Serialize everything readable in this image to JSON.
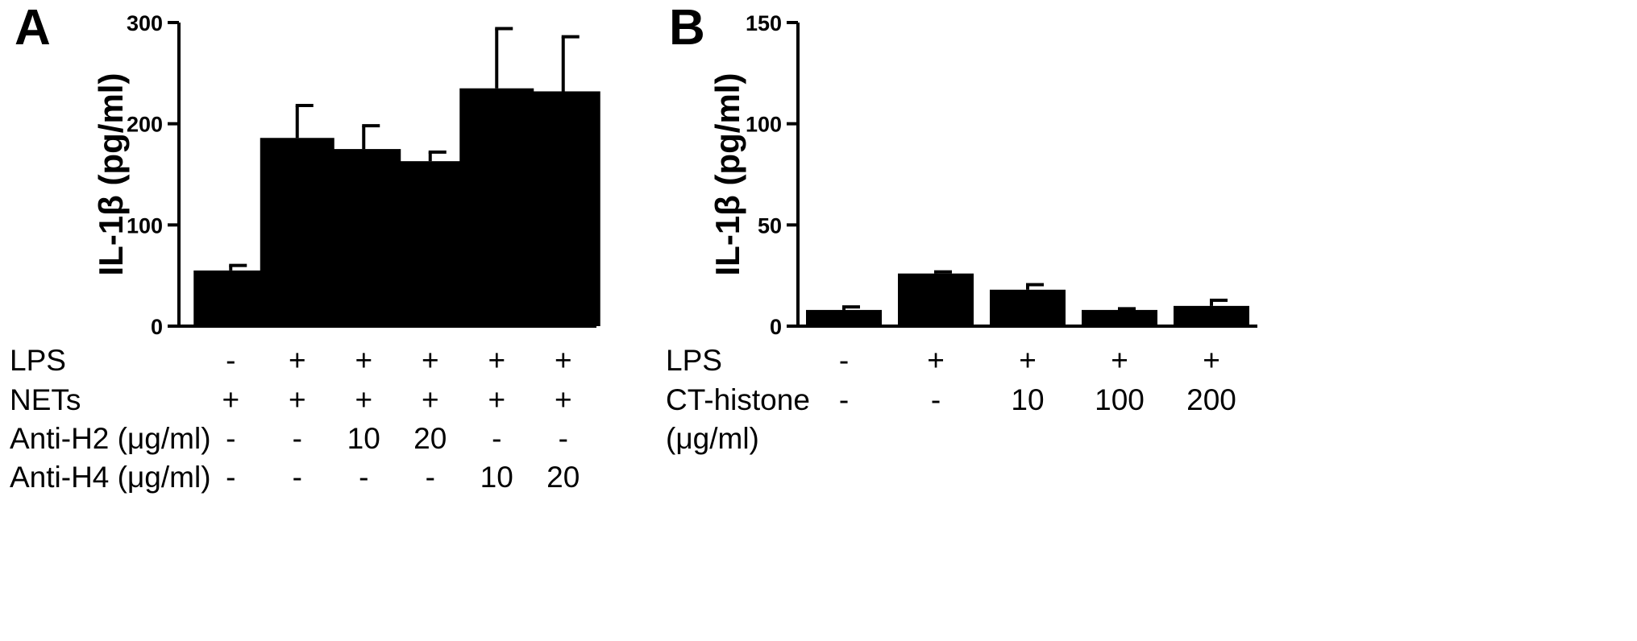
{
  "chart_data": [
    {
      "panel": "A",
      "type": "bar",
      "ylabel": "IL-1β (pg/ml)",
      "ylim": [
        0,
        300
      ],
      "yticks": [
        "0",
        "100",
        "200",
        "300"
      ],
      "values": [
        55,
        186,
        175,
        163,
        235,
        232
      ],
      "errors": [
        5,
        32,
        23,
        9,
        59,
        54
      ],
      "conditions": [
        {
          "label": "LPS",
          "cells": [
            "-",
            "+",
            "+",
            "+",
            "+",
            "+"
          ]
        },
        {
          "label": "NETs",
          "cells": [
            "+",
            "+",
            "+",
            "+",
            "+",
            "+"
          ]
        },
        {
          "label": "Anti-H2 (μg/ml)",
          "cells": [
            "-",
            "-",
            "10",
            "20",
            "-",
            "-"
          ]
        },
        {
          "label": "Anti-H4 (μg/ml)",
          "cells": [
            "-",
            "-",
            "-",
            "-",
            "10",
            "20"
          ]
        }
      ]
    },
    {
      "panel": "B",
      "type": "bar",
      "ylabel": "IL-1β (pg/ml)",
      "ylim": [
        0,
        150
      ],
      "yticks": [
        "0",
        "50",
        "100",
        "150"
      ],
      "values": [
        8,
        26,
        18,
        8,
        10
      ],
      "errors": [
        1.5,
        0.8,
        2.5,
        0.6,
        2.8
      ],
      "conditions": [
        {
          "label": "LPS",
          "cells": [
            "-",
            "+",
            "+",
            "+",
            "+"
          ]
        },
        {
          "label": "CT-histone",
          "label2": "(μg/ml)",
          "cells": [
            "-",
            "-",
            "10",
            "100",
            "200"
          ]
        }
      ]
    }
  ]
}
